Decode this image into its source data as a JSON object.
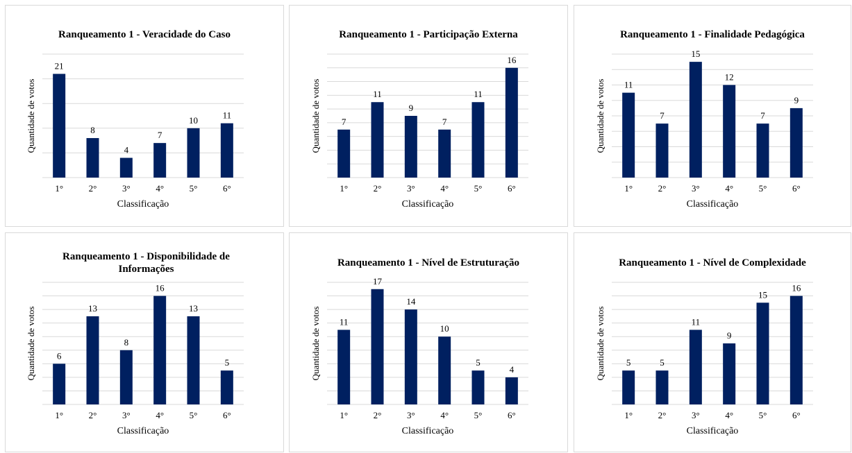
{
  "theme": {
    "bar_color": "#002060",
    "grid_color": "#d9d9d9"
  },
  "chart_data": [
    {
      "type": "bar",
      "title": "Ranqueamento 1 - Veracidade do Caso",
      "categories": [
        "1°",
        "2°",
        "3°",
        "4°",
        "5°",
        "6°"
      ],
      "values": [
        21,
        8,
        4,
        7,
        10,
        11
      ],
      "xlabel": "Classificação",
      "ylabel": "Quantidade de votos",
      "ylim": [
        0,
        25
      ],
      "grid": true
    },
    {
      "type": "bar",
      "title": "Ranqueamento 1 - Participação Externa",
      "categories": [
        "1°",
        "2°",
        "3°",
        "4°",
        "5°",
        "6°"
      ],
      "values": [
        7,
        11,
        9,
        7,
        11,
        16
      ],
      "xlabel": "Classificação",
      "ylabel": "Quantidade de votos",
      "ylim": [
        0,
        18
      ],
      "grid": true
    },
    {
      "type": "bar",
      "title": "Ranqueamento 1 - Finalidade Pedagógica",
      "categories": [
        "1°",
        "2°",
        "3°",
        "4°",
        "5°",
        "6°"
      ],
      "values": [
        11,
        7,
        15,
        12,
        7,
        9
      ],
      "xlabel": "Classificação",
      "ylabel": "Quantidade de votos",
      "ylim": [
        0,
        16
      ],
      "grid": true
    },
    {
      "type": "bar",
      "title": "Ranqueamento 1 - Disponibilidade de Informações",
      "categories": [
        "1°",
        "2°",
        "3°",
        "4°",
        "5°",
        "6°"
      ],
      "values": [
        6,
        13,
        8,
        16,
        13,
        5
      ],
      "xlabel": "Classificação",
      "ylabel": "Quantidade de votos",
      "ylim": [
        0,
        18
      ],
      "grid": true
    },
    {
      "type": "bar",
      "title": "Ranqueamento 1 - Nível de Estruturação",
      "categories": [
        "1°",
        "2°",
        "3°",
        "4°",
        "5°",
        "6°"
      ],
      "values": [
        11,
        17,
        14,
        10,
        5,
        4
      ],
      "xlabel": "Classificação",
      "ylabel": "Quantidade de votos",
      "ylim": [
        0,
        18
      ],
      "grid": true
    },
    {
      "type": "bar",
      "title": "Ranqueamento 1 - Nível de Complexidade",
      "categories": [
        "1°",
        "2°",
        "3°",
        "4°",
        "5°",
        "6°"
      ],
      "values": [
        5,
        5,
        11,
        9,
        15,
        16
      ],
      "xlabel": "Classificação",
      "ylabel": "Quantidade de votos",
      "ylim": [
        0,
        18
      ],
      "grid": true
    }
  ]
}
